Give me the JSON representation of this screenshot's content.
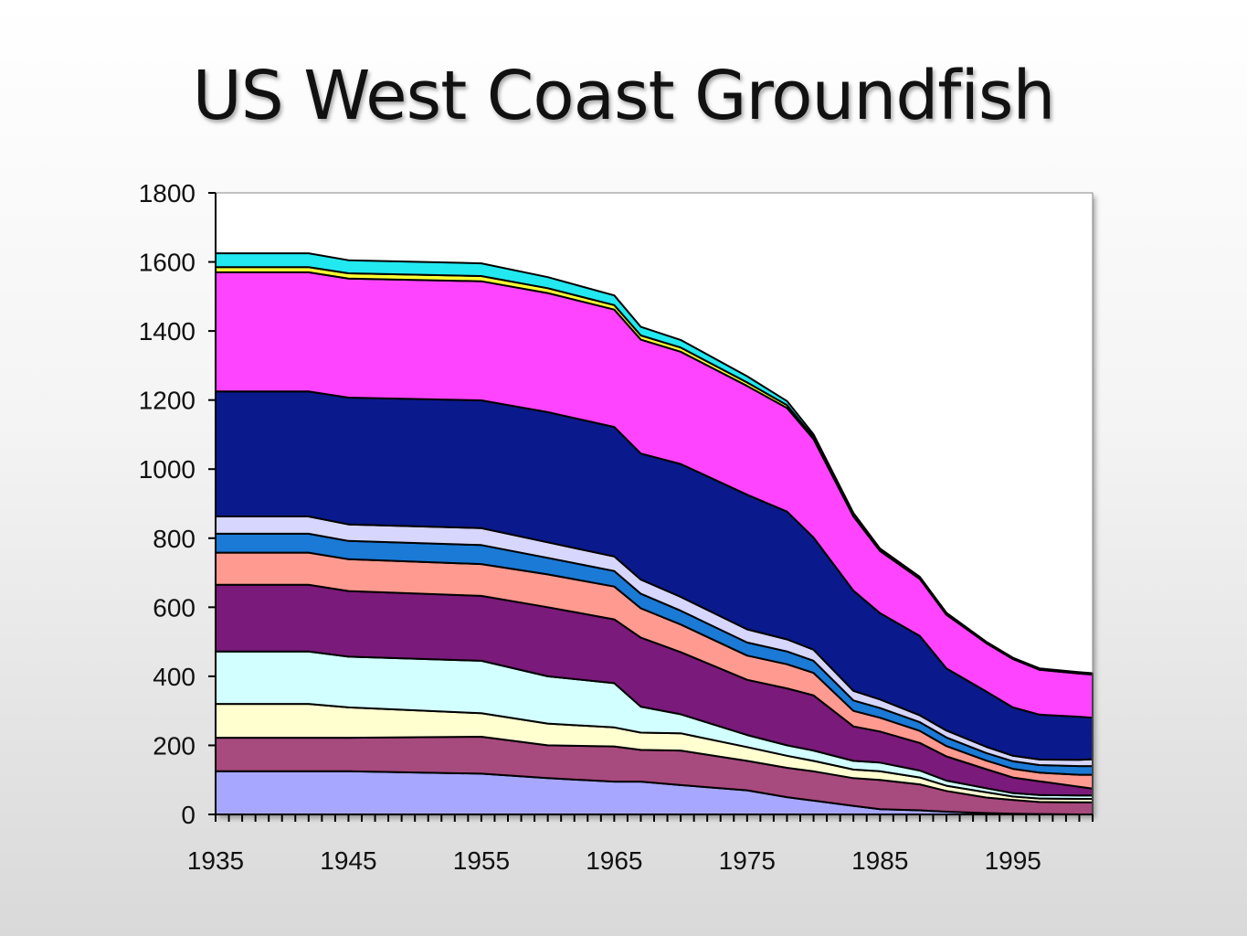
{
  "slide": {
    "title": "US West Coast Groundfish"
  },
  "chart_data": {
    "type": "area",
    "stacked": true,
    "title": "",
    "xlabel": "",
    "ylabel": "",
    "xlim": [
      1935,
      2001
    ],
    "ylim": [
      0,
      1800
    ],
    "yticks": [
      0,
      200,
      400,
      600,
      800,
      1000,
      1200,
      1400,
      1600,
      1800
    ],
    "xticks": [
      1935,
      1945,
      1955,
      1965,
      1975,
      1985,
      1995
    ],
    "grid": false,
    "legend": "none",
    "x": [
      1935,
      1942,
      1945,
      1955,
      1960,
      1965,
      1967,
      1970,
      1975,
      1978,
      1980,
      1983,
      1985,
      1988,
      1990,
      1993,
      1995,
      1997,
      2000,
      2001
    ],
    "series": [
      {
        "color": "#a7a7ff",
        "values": [
          125,
          125,
          125,
          118,
          105,
          95,
          95,
          85,
          70,
          50,
          40,
          25,
          15,
          12,
          8,
          4,
          2,
          1,
          0,
          0
        ]
      },
      {
        "color": "#a74a7d",
        "values": [
          97,
          97,
          97,
          107,
          95,
          102,
          92,
          100,
          85,
          85,
          85,
          80,
          85,
          75,
          60,
          45,
          40,
          35,
          35,
          35
        ]
      },
      {
        "color": "#ffffd0",
        "values": [
          98,
          98,
          88,
          68,
          63,
          55,
          50,
          50,
          40,
          35,
          30,
          25,
          25,
          20,
          15,
          15,
          10,
          10,
          10,
          10
        ]
      },
      {
        "color": "#d2ffff",
        "values": [
          152,
          152,
          147,
          152,
          137,
          128,
          75,
          55,
          35,
          30,
          30,
          25,
          25,
          20,
          15,
          12,
          10,
          10,
          10,
          10
        ]
      },
      {
        "color": "#7a1a7a",
        "values": [
          193,
          193,
          190,
          188,
          200,
          185,
          200,
          180,
          160,
          165,
          160,
          100,
          90,
          80,
          70,
          55,
          45,
          40,
          25,
          20
        ]
      },
      {
        "color": "#ff9a90",
        "values": [
          93,
          93,
          92,
          92,
          95,
          95,
          85,
          80,
          70,
          70,
          65,
          45,
          40,
          35,
          30,
          25,
          25,
          25,
          35,
          40
        ]
      },
      {
        "color": "#1a7ad6",
        "values": [
          55,
          55,
          53,
          55,
          48,
          45,
          42,
          40,
          38,
          37,
          35,
          30,
          28,
          25,
          25,
          22,
          22,
          22,
          25,
          25
        ]
      },
      {
        "color": "#d6d6ff",
        "values": [
          50,
          50,
          48,
          49,
          45,
          42,
          41,
          40,
          38,
          35,
          32,
          28,
          25,
          20,
          20,
          18,
          16,
          16,
          18,
          20
        ]
      },
      {
        "color": "#0a1a8c",
        "values": [
          362,
          362,
          367,
          370,
          377,
          375,
          365,
          385,
          390,
          370,
          325,
          290,
          250,
          230,
          180,
          160,
          140,
          130,
          125,
          120
        ]
      },
      {
        "color": "#ff44ff",
        "values": [
          345,
          345,
          345,
          345,
          345,
          340,
          330,
          325,
          315,
          300,
          285,
          215,
          180,
          165,
          155,
          140,
          140,
          130,
          125,
          125
        ]
      },
      {
        "color": "#ffff33",
        "values": [
          15,
          15,
          15,
          15,
          14,
          13,
          12,
          12,
          10,
          8,
          6,
          5,
          4,
          4,
          4,
          3,
          3,
          3,
          3,
          3
        ]
      },
      {
        "color": "#22e8f0",
        "values": [
          40,
          40,
          38,
          37,
          32,
          28,
          25,
          22,
          18,
          12,
          8,
          5,
          3,
          2,
          2,
          1,
          1,
          1,
          1,
          1
        ]
      }
    ]
  }
}
